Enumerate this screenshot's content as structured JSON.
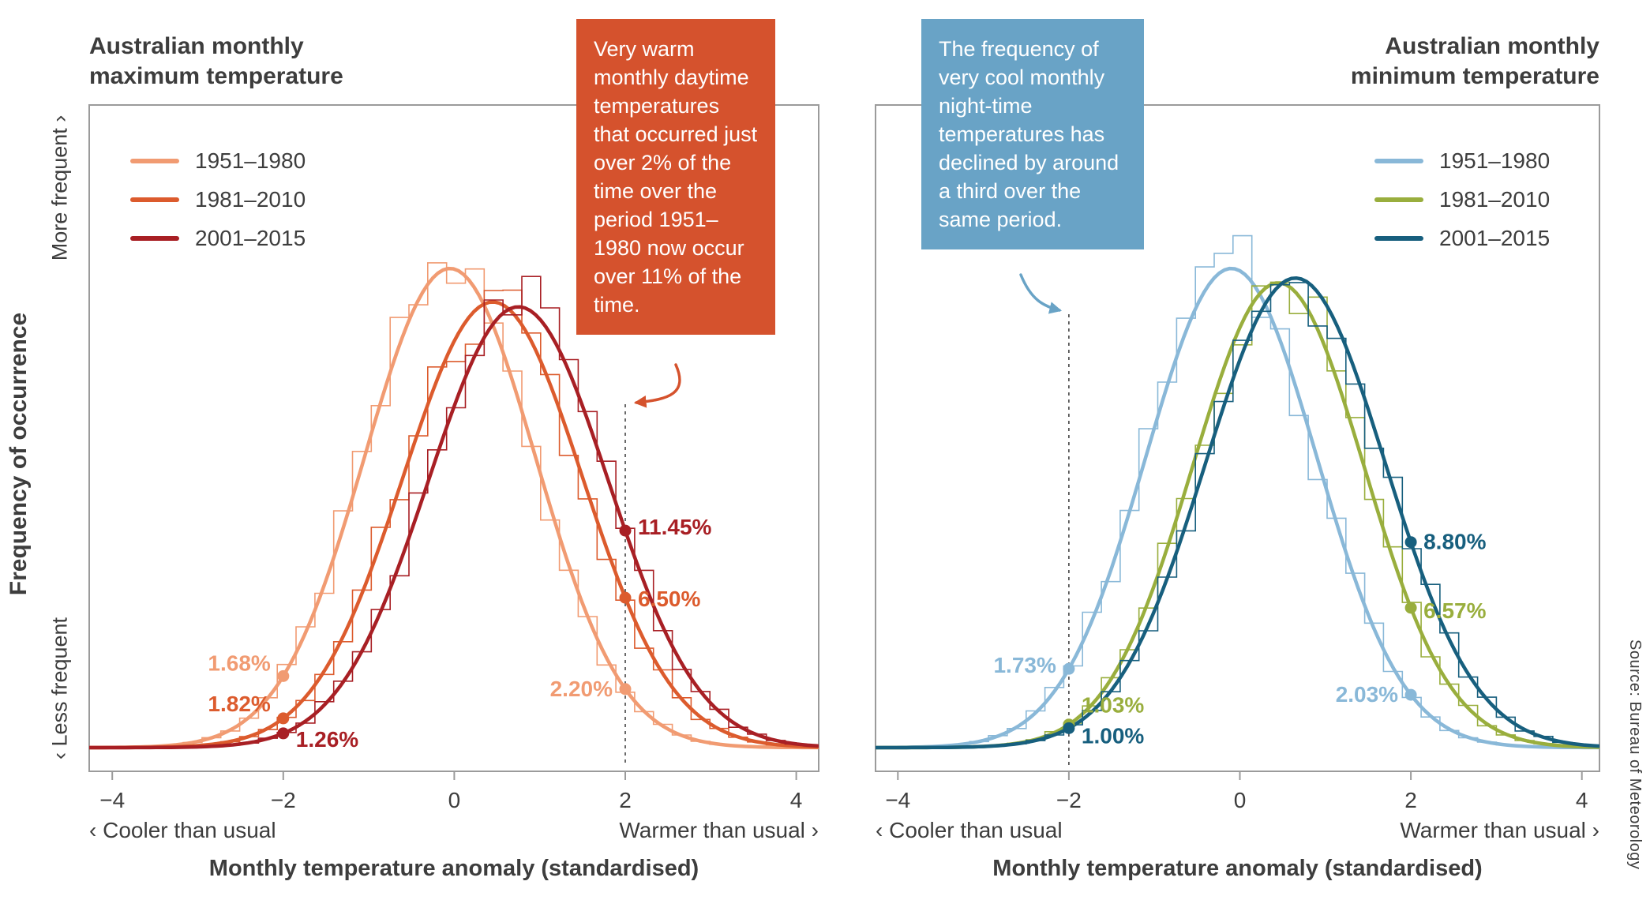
{
  "page": {
    "source_credit": "Source: Bureau of Meteorology"
  },
  "y_axis": {
    "label": "Frequency of occurrence",
    "more_label": "More frequent ›",
    "less_label": "‹ Less frequent"
  },
  "chart_data": [
    {
      "type": "area",
      "title_lines": [
        "Australian monthly",
        "maximum temperature"
      ],
      "xlabel": "Monthly temperature anomaly (standardised)",
      "x_left_label": "‹ Cooler than usual",
      "x_right_label": "Warmer than usual ›",
      "xlim": [
        -4.27,
        4.26
      ],
      "x_ticks": [
        {
          "value": -4,
          "label": "−4"
        },
        {
          "value": -2,
          "label": "−2"
        },
        {
          "value": 0,
          "label": "0"
        },
        {
          "value": 2,
          "label": "2"
        },
        {
          "value": 4,
          "label": "4"
        }
      ],
      "dashed_line_x": 2,
      "legend_position": "top-left",
      "annotation": {
        "text": "Very warm monthly daytime temperatures that occurred just over 2% of the time over the period 1951–1980 now occur over 11% of the time.",
        "color": "#d5522d"
      },
      "series": [
        {
          "name": "1951–1980",
          "color": "#f19b72",
          "mean": -0.05,
          "sd": 1.0,
          "peak": 1.0
        },
        {
          "name": "1981–2010",
          "color": "#dc5b2d",
          "mean": 0.45,
          "sd": 1.05,
          "peak": 0.93
        },
        {
          "name": "2001–2015",
          "color": "#a81f24",
          "mean": 0.75,
          "sd": 1.05,
          "peak": 0.92
        }
      ],
      "markers": [
        {
          "series": 2,
          "x": 2,
          "label": "11.45%",
          "side": "right",
          "dy": -4
        },
        {
          "series": 1,
          "x": 2,
          "label": "6.50%",
          "side": "right",
          "dy": 2
        },
        {
          "series": 0,
          "x": 2,
          "label": "2.20%",
          "side": "left",
          "dy": 0
        },
        {
          "series": 0,
          "x": -2,
          "label": "1.68%",
          "side": "left",
          "dy": -16
        },
        {
          "series": 1,
          "x": -2,
          "label": "1.82%",
          "side": "left",
          "dy": -18
        },
        {
          "series": 2,
          "x": -2,
          "label": "1.26%",
          "side": "right",
          "dy": 8
        }
      ]
    },
    {
      "type": "area",
      "title_lines": [
        "Australian monthly",
        "minimum temperature"
      ],
      "xlabel": "Monthly temperature anomaly (standardised)",
      "x_left_label": "‹ Cooler than usual",
      "x_right_label": "Warmer than usual ›",
      "xlim": [
        -4.26,
        4.21
      ],
      "x_ticks": [
        {
          "value": -4,
          "label": "−4"
        },
        {
          "value": -2,
          "label": "−2"
        },
        {
          "value": 0,
          "label": "0"
        },
        {
          "value": 2,
          "label": "2"
        },
        {
          "value": 4,
          "label": "4"
        }
      ],
      "dashed_line_x": -2,
      "legend_position": "top-right",
      "annotation": {
        "text": "The frequency of very cool monthly night-time temperatures has declined by around a third over the same period.",
        "color": "#69a3c6"
      },
      "series": [
        {
          "name": "1951–1980",
          "color": "#89b8d8",
          "mean": -0.1,
          "sd": 1.0,
          "peak": 1.0
        },
        {
          "name": "1981–2010",
          "color": "#99ae3d",
          "mean": 0.45,
          "sd": 1.0,
          "peak": 0.97
        },
        {
          "name": "2001–2015",
          "color": "#175f7e",
          "mean": 0.65,
          "sd": 1.05,
          "peak": 0.98
        }
      ],
      "markers": [
        {
          "series": 2,
          "x": 2,
          "label": "8.80%",
          "side": "right",
          "dy": 0
        },
        {
          "series": 1,
          "x": 2,
          "label": "6.57%",
          "side": "right",
          "dy": 4
        },
        {
          "series": 0,
          "x": 2,
          "label": "2.03%",
          "side": "left",
          "dy": 0
        },
        {
          "series": 0,
          "x": -2,
          "label": "1.73%",
          "side": "left",
          "dy": -4
        },
        {
          "series": 1,
          "x": -2,
          "label": "1.03%",
          "side": "right",
          "dy": -24
        },
        {
          "series": 2,
          "x": -2,
          "label": "1.00%",
          "side": "right",
          "dy": 10
        }
      ]
    }
  ]
}
